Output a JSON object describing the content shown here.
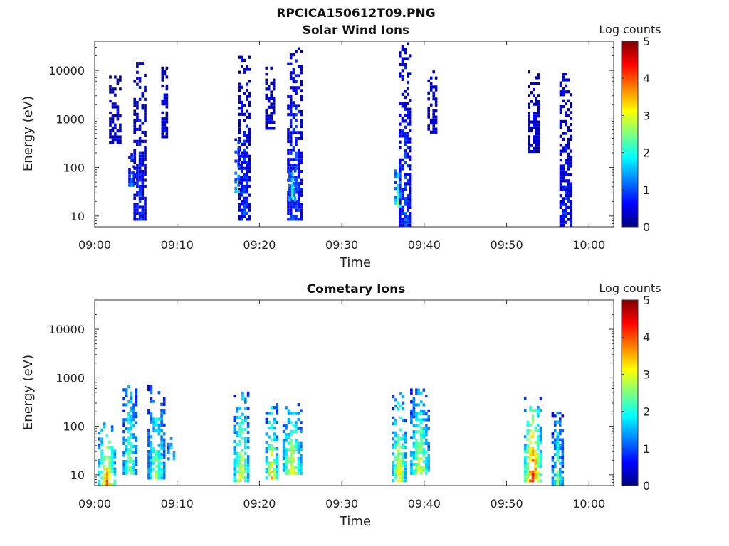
{
  "figure": {
    "filename_title": "RPCICA150612T09.PNG"
  },
  "colorbar": {
    "label": "Log counts",
    "ticks": [
      "0",
      "1",
      "2",
      "3",
      "4",
      "5"
    ],
    "range": [
      0,
      5
    ],
    "colors": [
      "#00007f",
      "#0000ff",
      "#007fff",
      "#00ffff",
      "#7fff7f",
      "#ffff00",
      "#ff7f00",
      "#ff0000",
      "#7f0000"
    ]
  },
  "chart_data": [
    {
      "type": "heatmap",
      "title": "Solar Wind Ions",
      "xlabel": "Time",
      "ylabel": "Energy (eV)",
      "xlim": [
        "09:00",
        "10:03"
      ],
      "x_ticks": [
        "09:00",
        "09:10",
        "09:20",
        "09:30",
        "09:40",
        "09:50",
        "10:00"
      ],
      "y_scale": "log",
      "ylim": [
        6,
        40000
      ],
      "y_ticks": [
        "10",
        "100",
        "1000",
        "10000"
      ],
      "zlabel": "Log counts",
      "zlim": [
        0,
        5
      ],
      "bursts": [
        {
          "t": 5.5,
          "w": 1.6,
          "emin": 8,
          "emax": 15000,
          "z": 0.6
        },
        {
          "t": 8.5,
          "w": 0.8,
          "emin": 400,
          "emax": 12000,
          "z": 0.4
        },
        {
          "t": 2.5,
          "w": 1.5,
          "emin": 300,
          "emax": 9000,
          "z": 0.3
        },
        {
          "t": 4.5,
          "w": 0.8,
          "emin": 40,
          "emax": 200,
          "z": 1.0
        },
        {
          "t": 18.2,
          "w": 1.5,
          "emin": 8,
          "emax": 20000,
          "z": 0.7
        },
        {
          "t": 17.3,
          "w": 0.7,
          "emin": 30,
          "emax": 400,
          "z": 1.4
        },
        {
          "t": 21.3,
          "w": 1.2,
          "emin": 600,
          "emax": 12000,
          "z": 0.4
        },
        {
          "t": 24.3,
          "w": 1.9,
          "emin": 8,
          "emax": 30000,
          "z": 0.8
        },
        {
          "t": 24.0,
          "w": 1.0,
          "emin": 20,
          "emax": 120,
          "z": 1.6
        },
        {
          "t": 37.7,
          "w": 1.6,
          "emin": 6,
          "emax": 38000,
          "z": 0.7
        },
        {
          "t": 36.8,
          "w": 0.8,
          "emin": 15,
          "emax": 120,
          "z": 1.9
        },
        {
          "t": 41.0,
          "w": 1.2,
          "emin": 500,
          "emax": 10000,
          "z": 0.4
        },
        {
          "t": 53.3,
          "w": 1.5,
          "emin": 200,
          "emax": 10000,
          "z": 0.3
        },
        {
          "t": 57.2,
          "w": 1.6,
          "emin": 6,
          "emax": 12000,
          "z": 0.6
        }
      ]
    },
    {
      "type": "heatmap",
      "title": "Cometary Ions",
      "xlabel": "Time",
      "ylabel": "Energy (eV)",
      "xlim": [
        "09:00",
        "10:03"
      ],
      "x_ticks": [
        "09:00",
        "09:10",
        "09:20",
        "09:30",
        "09:40",
        "09:50",
        "10:00"
      ],
      "y_scale": "log",
      "ylim": [
        6,
        40000
      ],
      "y_ticks": [
        "10",
        "100",
        "1000",
        "10000"
      ],
      "zlabel": "Log counts",
      "zlim": [
        0,
        5
      ],
      "bursts": [
        {
          "t": 1.5,
          "w": 2.2,
          "emin": 6,
          "emax": 120,
          "z": 2.8
        },
        {
          "t": 4.3,
          "w": 1.8,
          "emin": 10,
          "emax": 800,
          "z": 2.0
        },
        {
          "t": 7.5,
          "w": 2.2,
          "emin": 8,
          "emax": 700,
          "z": 2.0
        },
        {
          "t": 9.3,
          "w": 1.0,
          "emin": 20,
          "emax": 60,
          "z": 1.8
        },
        {
          "t": 17.8,
          "w": 2.0,
          "emin": 7,
          "emax": 600,
          "z": 2.4
        },
        {
          "t": 21.5,
          "w": 1.6,
          "emin": 8,
          "emax": 300,
          "z": 2.5
        },
        {
          "t": 24.0,
          "w": 2.4,
          "emin": 10,
          "emax": 300,
          "z": 2.4
        },
        {
          "t": 37.0,
          "w": 1.8,
          "emin": 7,
          "emax": 500,
          "z": 2.5
        },
        {
          "t": 39.5,
          "w": 2.4,
          "emin": 10,
          "emax": 600,
          "z": 2.3
        },
        {
          "t": 53.2,
          "w": 2.2,
          "emin": 7,
          "emax": 400,
          "z": 3.2
        },
        {
          "t": 56.2,
          "w": 1.5,
          "emin": 6,
          "emax": 200,
          "z": 1.8
        }
      ]
    }
  ]
}
